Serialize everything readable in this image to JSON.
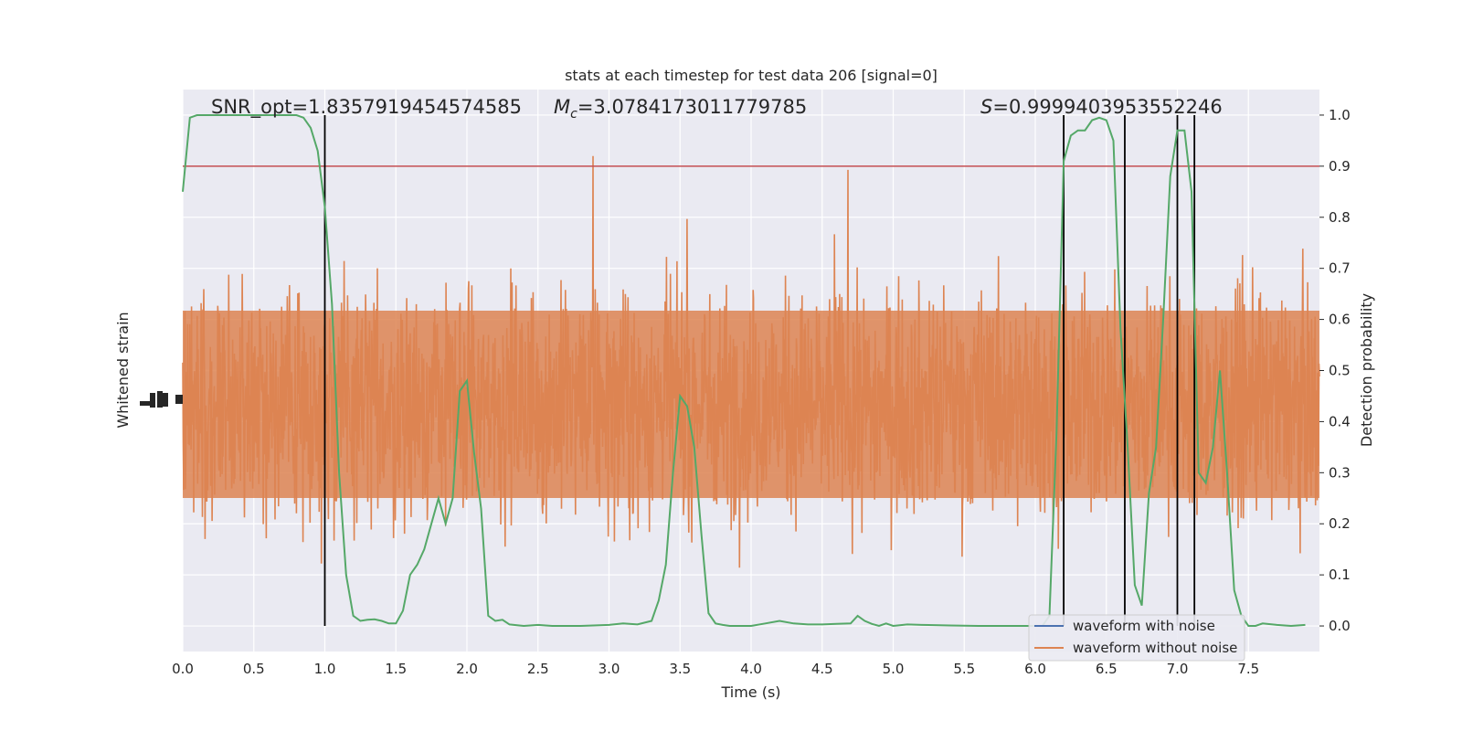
{
  "chart_data": {
    "type": "line",
    "title": "stats at each timestep for test data 206 [signal=0]",
    "xlabel": "Time (s)",
    "ylabel_left": "Whitened strain",
    "ylabel_right": "Detection probability",
    "xlim": [
      0.0,
      8.0
    ],
    "ylim_right": [
      -0.05,
      1.05
    ],
    "x_ticks": [
      "0.0",
      "0.5",
      "1.0",
      "1.5",
      "2.0",
      "2.5",
      "3.0",
      "3.5",
      "4.0",
      "4.5",
      "5.0",
      "5.5",
      "6.0",
      "6.5",
      "7.0",
      "7.5"
    ],
    "y_ticks_right": [
      "0.0",
      "0.1",
      "0.2",
      "0.3",
      "0.4",
      "0.5",
      "0.6",
      "0.7",
      "0.8",
      "0.9",
      "1.0"
    ],
    "grid": true,
    "legend_position": "lower-right",
    "annotations": {
      "snr": "SNR_opt=1.8357919454574585",
      "mc_symbol": "M",
      "mc_sub": "c",
      "mc_value": "=3.0784173011779785",
      "s_symbol": "S",
      "s_value": "=0.9999403953552246"
    },
    "threshold": 0.9,
    "detection_markers": [
      1.0,
      6.2,
      6.63,
      7.0,
      7.12
    ],
    "series": [
      {
        "name": "waveform with noise",
        "color": "#4c72b0"
      },
      {
        "name": "waveform without noise",
        "color": "#dd8452"
      }
    ],
    "detection_probability": {
      "color": "#55a868",
      "x": [
        0.0,
        0.05,
        0.1,
        0.2,
        0.3,
        0.4,
        0.5,
        0.6,
        0.7,
        0.8,
        0.85,
        0.9,
        0.95,
        1.0,
        1.05,
        1.1,
        1.15,
        1.2,
        1.25,
        1.3,
        1.35,
        1.4,
        1.45,
        1.5,
        1.55,
        1.6,
        1.65,
        1.7,
        1.75,
        1.8,
        1.85,
        1.9,
        1.95,
        2.0,
        2.05,
        2.1,
        2.15,
        2.2,
        2.25,
        2.3,
        2.4,
        2.5,
        2.6,
        2.8,
        3.0,
        3.1,
        3.2,
        3.3,
        3.35,
        3.4,
        3.45,
        3.5,
        3.55,
        3.6,
        3.65,
        3.7,
        3.75,
        3.8,
        3.85,
        3.9,
        4.0,
        4.1,
        4.2,
        4.3,
        4.4,
        4.5,
        4.6,
        4.7,
        4.75,
        4.8,
        4.85,
        4.9,
        4.95,
        5.0,
        5.1,
        5.2,
        5.4,
        5.6,
        5.8,
        6.0,
        6.05,
        6.1,
        6.15,
        6.2,
        6.25,
        6.3,
        6.35,
        6.4,
        6.45,
        6.5,
        6.55,
        6.6,
        6.65,
        6.7,
        6.75,
        6.8,
        6.85,
        6.9,
        6.95,
        7.0,
        7.05,
        7.1,
        7.15,
        7.2,
        7.25,
        7.3,
        7.35,
        7.4,
        7.45,
        7.5,
        7.55,
        7.6,
        7.7,
        7.8,
        7.9
      ],
      "y": [
        0.85,
        0.995,
        1.0,
        1.0,
        1.0,
        1.0,
        1.0,
        1.0,
        1.0,
        1.0,
        0.995,
        0.975,
        0.93,
        0.82,
        0.63,
        0.3,
        0.1,
        0.02,
        0.01,
        0.012,
        0.013,
        0.01,
        0.005,
        0.005,
        0.03,
        0.1,
        0.12,
        0.15,
        0.2,
        0.25,
        0.2,
        0.25,
        0.46,
        0.48,
        0.34,
        0.23,
        0.02,
        0.01,
        0.012,
        0.003,
        0.0,
        0.002,
        0.0,
        0.0,
        0.002,
        0.005,
        0.003,
        0.01,
        0.05,
        0.12,
        0.3,
        0.45,
        0.43,
        0.35,
        0.18,
        0.025,
        0.005,
        0.002,
        0.0,
        0.0,
        0.0,
        0.005,
        0.01,
        0.005,
        0.003,
        0.003,
        0.004,
        0.005,
        0.02,
        0.01,
        0.004,
        0.0,
        0.005,
        0.0,
        0.003,
        0.002,
        0.001,
        0.0,
        0.0,
        0.0,
        0.0,
        0.02,
        0.38,
        0.91,
        0.96,
        0.97,
        0.97,
        0.99,
        0.995,
        0.99,
        0.95,
        0.58,
        0.35,
        0.08,
        0.04,
        0.26,
        0.35,
        0.6,
        0.88,
        0.97,
        0.97,
        0.85,
        0.3,
        0.28,
        0.35,
        0.5,
        0.3,
        0.07,
        0.02,
        0.0,
        0.0,
        0.005,
        0.002,
        0.0,
        0.002
      ]
    }
  }
}
